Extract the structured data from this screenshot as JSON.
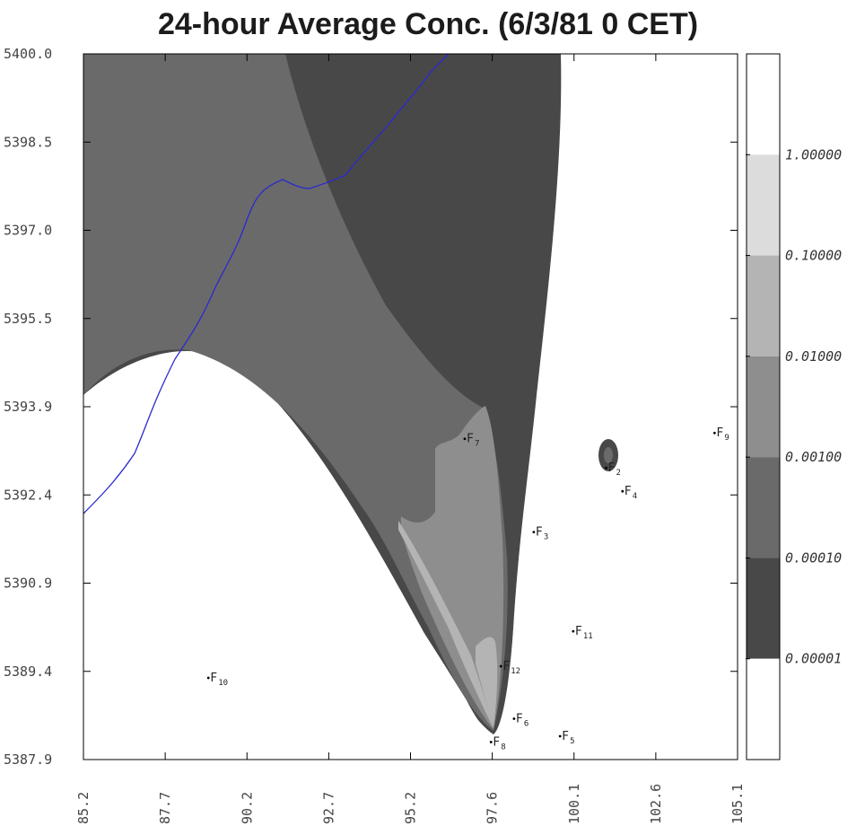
{
  "chart_data": {
    "type": "contour",
    "title": "24-hour Average Conc. (6/3/81 0 CET)",
    "xlim": [
      85.2,
      105.1
    ],
    "ylim": [
      5387.9,
      5400.0
    ],
    "x_ticks": [
      "85.2",
      "87.7",
      "90.2",
      "92.7",
      "95.2",
      "97.6",
      "100.1",
      "102.6",
      "105.1"
    ],
    "y_ticks": [
      "5387.9",
      "5389.4",
      "5390.9",
      "5392.4",
      "5393.9",
      "5395.5",
      "5397.0",
      "5398.5",
      "5400.0"
    ],
    "legend_levels": [
      "1.00000",
      "0.10000",
      "0.01000",
      "0.00100",
      "0.00010",
      "0.00001"
    ],
    "level_colors": [
      "#ffffff",
      "#dcdcdc",
      "#b4b4b4",
      "#8e8e8e",
      "#6a6a6a",
      "#484848",
      "#ffffff"
    ],
    "sources": [
      {
        "name": "F",
        "sub": "2",
        "x": 101.1,
        "y": 5392.9
      },
      {
        "name": "F",
        "sub": "3",
        "x": 98.9,
        "y": 5391.8
      },
      {
        "name": "F",
        "sub": "4",
        "x": 101.6,
        "y": 5392.5
      },
      {
        "name": "F",
        "sub": "5",
        "x": 99.7,
        "y": 5388.3
      },
      {
        "name": "F",
        "sub": "6",
        "x": 98.3,
        "y": 5388.6
      },
      {
        "name": "F",
        "sub": "7",
        "x": 96.8,
        "y": 5393.4
      },
      {
        "name": "F",
        "sub": "8",
        "x": 97.6,
        "y": 5388.2
      },
      {
        "name": "F",
        "sub": "9",
        "x": 104.4,
        "y": 5393.5
      },
      {
        "name": "F",
        "sub": "10",
        "x": 89.0,
        "y": 5389.3
      },
      {
        "name": "F",
        "sub": "11",
        "x": 100.1,
        "y": 5390.1
      },
      {
        "name": "F",
        "sub": "12",
        "x": 97.9,
        "y": 5389.5
      }
    ]
  }
}
